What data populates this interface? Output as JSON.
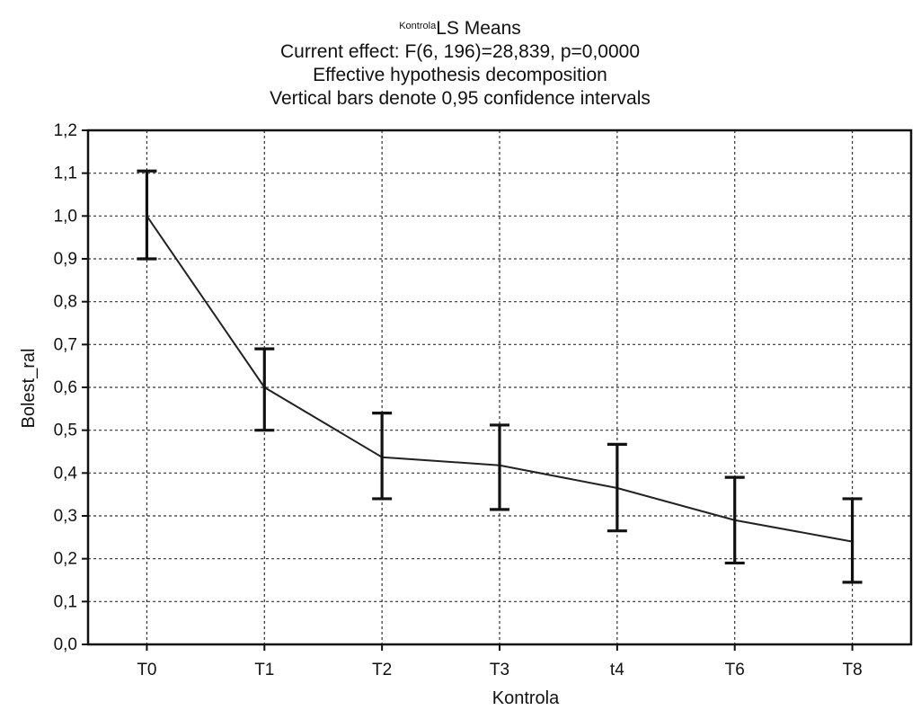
{
  "chart_data": {
    "type": "line",
    "title": {
      "superscript": "Kontrola",
      "main": "LS Means"
    },
    "subtitle_lines": [
      "Current effect: F(6, 196)=28,839, p=0,0000",
      "Effective hypothesis decomposition",
      "Vertical bars denote 0,95 confidence intervals"
    ],
    "xlabel": "Kontrola",
    "ylabel": "Bolest_ral",
    "categories": [
      "T0",
      "T1",
      "T2",
      "T3",
      "t4",
      "T6",
      "T8"
    ],
    "series": [
      {
        "values": [
          1.0,
          0.6,
          0.437,
          0.418,
          0.365,
          0.29,
          0.24
        ],
        "ci_lower": [
          0.9,
          0.5,
          0.34,
          0.315,
          0.265,
          0.19,
          0.145
        ],
        "ci_upper": [
          1.105,
          0.69,
          0.54,
          0.512,
          0.467,
          0.39,
          0.34
        ]
      }
    ],
    "ylim": [
      0.0,
      1.2
    ],
    "yticks": [
      "0,0",
      "0,1",
      "0,2",
      "0,3",
      "0,4",
      "0,5",
      "0,6",
      "0,7",
      "0,8",
      "0,9",
      "1,0",
      "1,1",
      "1,2"
    ],
    "grid": true,
    "grid_style": "dashed",
    "line_color": "#222222",
    "error_bar_color": "#111111",
    "grid_color": "#333333"
  }
}
